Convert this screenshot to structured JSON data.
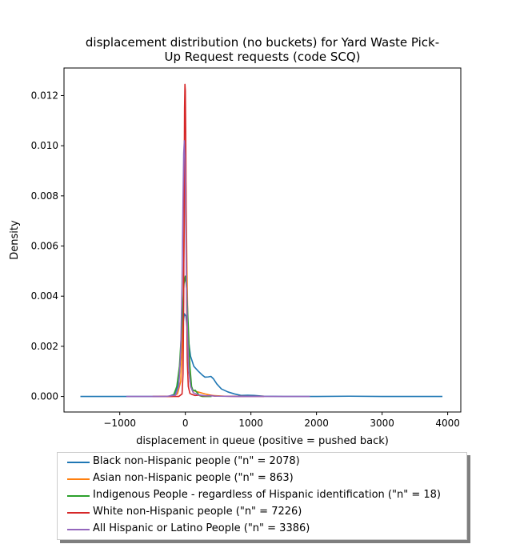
{
  "chart_data": {
    "type": "line",
    "title": "displacement distribution (no buckets)  for Yard Waste Pick-Up Request requests (code SCQ)",
    "title_lines": [
      "displacement distribution (no buckets)  for Yard Waste Pick-",
      "Up Request requests (code SCQ)"
    ],
    "xlabel": "displacement in queue (positive = pushed back)",
    "ylabel": "Density",
    "xlim": [
      -1850,
      4200
    ],
    "ylim": [
      -0.00062,
      0.0131
    ],
    "xticks": [
      -1000,
      0,
      1000,
      2000,
      3000,
      4000
    ],
    "xtick_labels": [
      "−1000",
      "0",
      "1000",
      "2000",
      "3000",
      "4000"
    ],
    "yticks": [
      0.0,
      0.002,
      0.004,
      0.006,
      0.008,
      0.01,
      0.012
    ],
    "ytick_labels": [
      "0.000",
      "0.002",
      "0.004",
      "0.006",
      "0.008",
      "0.010",
      "0.012"
    ],
    "grid": false,
    "legend_position": "below",
    "series": [
      {
        "name": "Black non-Hispanic people (\"n\" = 2078)",
        "color": "#1f77b4",
        "points": [
          [
            -1600,
            0
          ],
          [
            -800,
            0
          ],
          [
            -400,
            0
          ],
          [
            -250,
            1e-05
          ],
          [
            -150,
            0.0001
          ],
          [
            -100,
            0.0006
          ],
          [
            -70,
            0.0016
          ],
          [
            -40,
            0.0028
          ],
          [
            -15,
            0.0033
          ],
          [
            10,
            0.0032
          ],
          [
            40,
            0.0024
          ],
          [
            80,
            0.0016
          ],
          [
            130,
            0.0012
          ],
          [
            200,
            0.001
          ],
          [
            260,
            0.00085
          ],
          [
            300,
            0.00077
          ],
          [
            350,
            0.00078
          ],
          [
            390,
            0.0008
          ],
          [
            430,
            0.0007
          ],
          [
            480,
            0.0005
          ],
          [
            550,
            0.0003
          ],
          [
            650,
            0.00018
          ],
          [
            750,
            0.0001
          ],
          [
            850,
            4e-05
          ],
          [
            950,
            5e-05
          ],
          [
            1050,
            4e-05
          ],
          [
            1200,
            1e-05
          ],
          [
            1500,
            0
          ],
          [
            2000,
            0
          ],
          [
            2500,
            1e-05
          ],
          [
            3000,
            0
          ],
          [
            3500,
            0
          ],
          [
            3920,
            0
          ]
        ]
      },
      {
        "name": "Asian non-Hispanic people (\"n\" = 863)",
        "color": "#ff7f0e",
        "points": [
          [
            -400,
            0
          ],
          [
            -200,
            0
          ],
          [
            -120,
            0.0001
          ],
          [
            -70,
            0.0006
          ],
          [
            -40,
            0.0025
          ],
          [
            -20,
            0.006
          ],
          [
            -8,
            0.0085
          ],
          [
            0,
            0.0093
          ],
          [
            10,
            0.0082
          ],
          [
            25,
            0.005
          ],
          [
            45,
            0.0018
          ],
          [
            70,
            0.0006
          ],
          [
            110,
            0.00025
          ],
          [
            160,
            0.0002
          ],
          [
            220,
            0.00016
          ],
          [
            300,
            0.0001
          ],
          [
            400,
            4e-05
          ],
          [
            600,
            1e-05
          ],
          [
            900,
            0
          ]
        ]
      },
      {
        "name": "Indigenous People - regardless of Hispanic identification (\"n\" = 18)",
        "color": "#2ca02c",
        "points": [
          [
            -250,
            0
          ],
          [
            -180,
            5e-05
          ],
          [
            -130,
            0.0004
          ],
          [
            -90,
            0.0012
          ],
          [
            -60,
            0.0025
          ],
          [
            -40,
            0.0035
          ],
          [
            -20,
            0.0045
          ],
          [
            0,
            0.0048
          ],
          [
            20,
            0.0043
          ],
          [
            45,
            0.0028
          ],
          [
            70,
            0.0012
          ],
          [
            95,
            0.0004
          ],
          [
            120,
            0.00022
          ],
          [
            150,
            0.00025
          ],
          [
            180,
            0.00015
          ],
          [
            220,
            3e-05
          ],
          [
            260,
            0
          ],
          [
            400,
            0
          ]
        ]
      },
      {
        "name": "White non-Hispanic people (\"n\" = 7226)",
        "color": "#d62728",
        "points": [
          [
            -500,
            0
          ],
          [
            -200,
            0
          ],
          [
            -100,
            0
          ],
          [
            -50,
            0.0001
          ],
          [
            -35,
            0.0009
          ],
          [
            -25,
            0.0038
          ],
          [
            -18,
            0.0082
          ],
          [
            -12,
            0.0115
          ],
          [
            -6,
            0.01245
          ],
          [
            0,
            0.0122
          ],
          [
            6,
            0.0105
          ],
          [
            12,
            0.0072
          ],
          [
            20,
            0.0038
          ],
          [
            30,
            0.0014
          ],
          [
            45,
            0.0004
          ],
          [
            70,
            0.00012
          ],
          [
            100,
            8e-05
          ],
          [
            150,
            4e-05
          ],
          [
            200,
            5e-05
          ],
          [
            260,
            3e-05
          ],
          [
            330,
            2e-05
          ],
          [
            400,
            4e-05
          ],
          [
            450,
            1e-05
          ],
          [
            600,
            1e-05
          ],
          [
            900,
            0
          ],
          [
            1200,
            0
          ]
        ]
      },
      {
        "name": "All Hispanic or Latino People (\"n\" = 3386)",
        "color": "#9467bd",
        "points": [
          [
            -900,
            0
          ],
          [
            -500,
            0
          ],
          [
            -300,
            0
          ],
          [
            -150,
            5e-05
          ],
          [
            -100,
            0.0004
          ],
          [
            -70,
            0.0018
          ],
          [
            -50,
            0.0045
          ],
          [
            -35,
            0.0078
          ],
          [
            -25,
            0.0097
          ],
          [
            -15,
            0.0102
          ],
          [
            -5,
            0.0095
          ],
          [
            5,
            0.0075
          ],
          [
            15,
            0.0052
          ],
          [
            30,
            0.0028
          ],
          [
            50,
            0.0011
          ],
          [
            80,
            0.0004
          ],
          [
            120,
            0.00015
          ],
          [
            200,
            6e-05
          ],
          [
            300,
            3e-05
          ],
          [
            500,
            1e-05
          ],
          [
            800,
            0
          ],
          [
            1200,
            0
          ],
          [
            1900,
            0
          ]
        ]
      }
    ]
  }
}
